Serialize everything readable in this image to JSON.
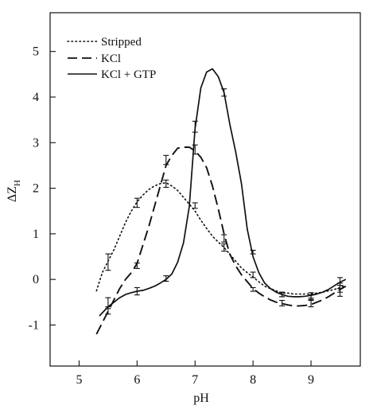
{
  "chart_data": {
    "type": "line",
    "title": "",
    "xlabel": "pH",
    "ylabel": "ΔZ",
    "ylabel_sub": "H",
    "xlim": [
      4.5,
      9.85
    ],
    "ylim": [
      -1.9,
      5.85
    ],
    "xticks": [
      5,
      6,
      7,
      8,
      9
    ],
    "yticks": [
      -1,
      0,
      1,
      2,
      3,
      4,
      5
    ],
    "grid": false,
    "legend_position": "top-left",
    "series": [
      {
        "name": "Stripped",
        "style": "dotted",
        "points": [
          [
            5.3,
            -0.25
          ],
          [
            5.4,
            0.15
          ],
          [
            5.5,
            0.4
          ],
          [
            5.6,
            0.65
          ],
          [
            5.7,
            0.95
          ],
          [
            5.8,
            1.25
          ],
          [
            5.9,
            1.5
          ],
          [
            6.0,
            1.7
          ],
          [
            6.1,
            1.85
          ],
          [
            6.2,
            1.97
          ],
          [
            6.3,
            2.05
          ],
          [
            6.4,
            2.1
          ],
          [
            6.5,
            2.12
          ],
          [
            6.6,
            2.05
          ],
          [
            6.7,
            1.95
          ],
          [
            6.8,
            1.8
          ],
          [
            6.9,
            1.65
          ],
          [
            7.0,
            1.5
          ],
          [
            7.1,
            1.3
          ],
          [
            7.2,
            1.12
          ],
          [
            7.3,
            0.95
          ],
          [
            7.4,
            0.82
          ],
          [
            7.5,
            0.7
          ],
          [
            7.6,
            0.55
          ],
          [
            7.7,
            0.4
          ],
          [
            7.8,
            0.25
          ],
          [
            7.9,
            0.15
          ],
          [
            8.0,
            0.05
          ],
          [
            8.1,
            -0.05
          ],
          [
            8.2,
            -0.15
          ],
          [
            8.3,
            -0.2
          ],
          [
            8.4,
            -0.25
          ],
          [
            8.5,
            -0.3
          ],
          [
            8.6,
            -0.3
          ],
          [
            8.7,
            -0.32
          ],
          [
            8.8,
            -0.32
          ],
          [
            8.9,
            -0.32
          ],
          [
            9.0,
            -0.32
          ],
          [
            9.1,
            -0.3
          ],
          [
            9.2,
            -0.28
          ],
          [
            9.3,
            -0.25
          ],
          [
            9.4,
            -0.22
          ],
          [
            9.5,
            -0.18
          ],
          [
            9.6,
            -0.12
          ]
        ],
        "error_bars": [
          [
            5.5,
            0.38,
            0.18
          ],
          [
            6.0,
            1.68,
            0.1
          ],
          [
            6.5,
            2.1,
            0.08
          ],
          [
            7.0,
            1.62,
            0.06
          ],
          [
            7.5,
            0.7,
            0.08
          ],
          [
            8.0,
            0.1,
            0.06
          ],
          [
            8.5,
            -0.33,
            0.05
          ],
          [
            9.0,
            -0.35,
            0.06
          ],
          [
            9.5,
            -0.18,
            0.1
          ]
        ]
      },
      {
        "name": "KCl",
        "style": "dashed",
        "points": [
          [
            5.3,
            -1.2
          ],
          [
            5.4,
            -0.95
          ],
          [
            5.5,
            -0.7
          ],
          [
            5.6,
            -0.45
          ],
          [
            5.7,
            -0.2
          ],
          [
            5.8,
            0.0
          ],
          [
            5.9,
            0.15
          ],
          [
            6.0,
            0.35
          ],
          [
            6.1,
            0.75
          ],
          [
            6.2,
            1.15
          ],
          [
            6.3,
            1.6
          ],
          [
            6.4,
            2.05
          ],
          [
            6.5,
            2.5
          ],
          [
            6.6,
            2.72
          ],
          [
            6.7,
            2.88
          ],
          [
            6.8,
            2.9
          ],
          [
            6.9,
            2.9
          ],
          [
            7.0,
            2.82
          ],
          [
            7.1,
            2.68
          ],
          [
            7.2,
            2.45
          ],
          [
            7.3,
            2.05
          ],
          [
            7.4,
            1.55
          ],
          [
            7.5,
            1.0
          ],
          [
            7.6,
            0.55
          ],
          [
            7.7,
            0.3
          ],
          [
            7.8,
            0.1
          ],
          [
            7.9,
            -0.05
          ],
          [
            8.0,
            -0.2
          ],
          [
            8.1,
            -0.3
          ],
          [
            8.2,
            -0.38
          ],
          [
            8.3,
            -0.45
          ],
          [
            8.4,
            -0.5
          ],
          [
            8.5,
            -0.53
          ],
          [
            8.6,
            -0.56
          ],
          [
            8.7,
            -0.58
          ],
          [
            8.8,
            -0.58
          ],
          [
            8.9,
            -0.57
          ],
          [
            9.0,
            -0.55
          ],
          [
            9.1,
            -0.5
          ],
          [
            9.2,
            -0.45
          ],
          [
            9.3,
            -0.38
          ],
          [
            9.4,
            -0.3
          ],
          [
            9.5,
            -0.22
          ],
          [
            9.6,
            -0.15
          ]
        ],
        "error_bars": [
          [
            5.5,
            -0.68,
            0.08
          ],
          [
            6.0,
            0.3,
            0.06
          ],
          [
            6.5,
            2.62,
            0.1
          ],
          [
            7.0,
            2.85,
            0.1
          ],
          [
            7.5,
            0.9,
            0.08
          ],
          [
            8.0,
            -0.22,
            0.04
          ],
          [
            8.5,
            -0.52,
            0.06
          ],
          [
            9.0,
            -0.52,
            0.08
          ],
          [
            9.5,
            -0.25,
            0.12
          ]
        ]
      },
      {
        "name": "KCl + GTP",
        "style": "solid",
        "points": [
          [
            5.35,
            -0.8
          ],
          [
            5.5,
            -0.6
          ],
          [
            5.6,
            -0.5
          ],
          [
            5.7,
            -0.4
          ],
          [
            5.8,
            -0.33
          ],
          [
            5.9,
            -0.29
          ],
          [
            6.0,
            -0.26
          ],
          [
            6.1,
            -0.24
          ],
          [
            6.2,
            -0.2
          ],
          [
            6.3,
            -0.15
          ],
          [
            6.4,
            -0.08
          ],
          [
            6.5,
            0.0
          ],
          [
            6.6,
            0.12
          ],
          [
            6.7,
            0.38
          ],
          [
            6.8,
            0.8
          ],
          [
            6.9,
            1.6
          ],
          [
            7.0,
            3.3
          ],
          [
            7.1,
            4.2
          ],
          [
            7.2,
            4.55
          ],
          [
            7.3,
            4.62
          ],
          [
            7.4,
            4.45
          ],
          [
            7.5,
            4.1
          ],
          [
            7.6,
            3.4
          ],
          [
            7.7,
            2.8
          ],
          [
            7.8,
            2.1
          ],
          [
            7.9,
            1.1
          ],
          [
            8.0,
            0.5
          ],
          [
            8.1,
            0.15
          ],
          [
            8.2,
            -0.08
          ],
          [
            8.3,
            -0.2
          ],
          [
            8.4,
            -0.28
          ],
          [
            8.5,
            -0.33
          ],
          [
            8.6,
            -0.37
          ],
          [
            8.7,
            -0.38
          ],
          [
            8.8,
            -0.38
          ],
          [
            8.9,
            -0.37
          ],
          [
            9.0,
            -0.35
          ],
          [
            9.1,
            -0.32
          ],
          [
            9.2,
            -0.28
          ],
          [
            9.3,
            -0.22
          ],
          [
            9.4,
            -0.14
          ],
          [
            9.5,
            -0.06
          ],
          [
            9.6,
            0.0
          ]
        ],
        "error_bars": [
          [
            5.5,
            -0.52,
            0.12
          ],
          [
            6.0,
            -0.26,
            0.08
          ],
          [
            6.5,
            0.02,
            0.06
          ],
          [
            7.0,
            3.35,
            0.12
          ],
          [
            7.5,
            4.1,
            0.08
          ],
          [
            8.0,
            0.6,
            0.04
          ],
          [
            8.5,
            -0.33,
            0.05
          ],
          [
            9.0,
            -0.4,
            0.06
          ],
          [
            9.5,
            -0.08,
            0.12
          ]
        ]
      }
    ]
  }
}
